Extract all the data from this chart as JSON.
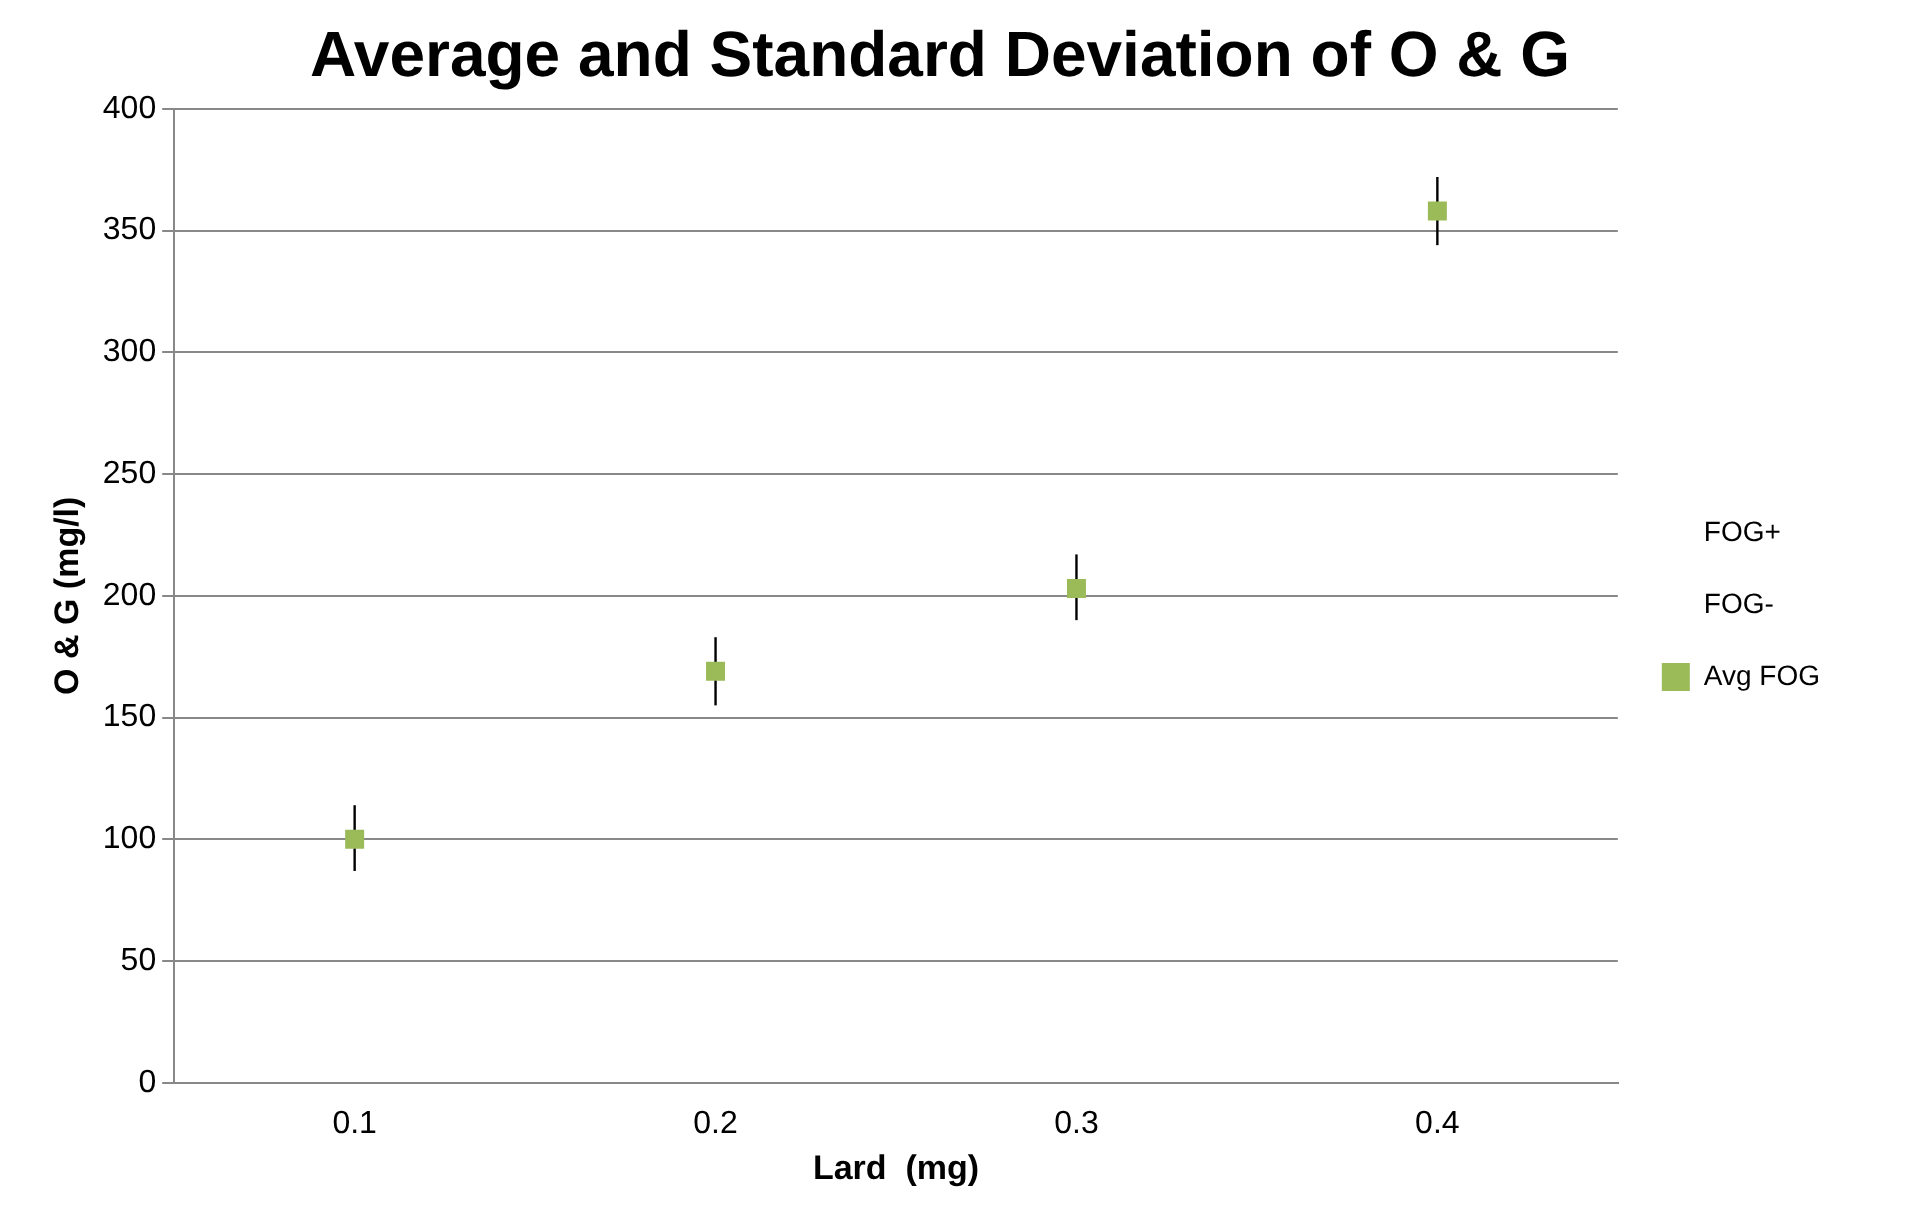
{
  "chart_data": {
    "type": "scatter",
    "title": "Average and Standard Deviation of O & G",
    "xlabel": "Lard  (mg)",
    "ylabel": "O & G (mg/l)",
    "categories": [
      "0.1",
      "0.2",
      "0.3",
      "0.4"
    ],
    "series": [
      {
        "name": "FOG+",
        "marker": "none",
        "values": [
          null,
          null,
          null,
          null
        ]
      },
      {
        "name": "FOG-",
        "marker": "none",
        "values": [
          null,
          null,
          null,
          null
        ]
      },
      {
        "name": "Avg FOG",
        "color": "#9bbb59",
        "marker": "square",
        "values": [
          100,
          169,
          203,
          358
        ],
        "errors": [
          [
            87,
            114
          ],
          [
            155,
            183
          ],
          [
            190,
            217
          ],
          [
            344,
            372
          ]
        ]
      }
    ],
    "ylim": [
      0,
      400
    ],
    "yticks": [
      0,
      50,
      100,
      150,
      200,
      250,
      300,
      350,
      400
    ],
    "grid": "y",
    "legend": "right"
  }
}
